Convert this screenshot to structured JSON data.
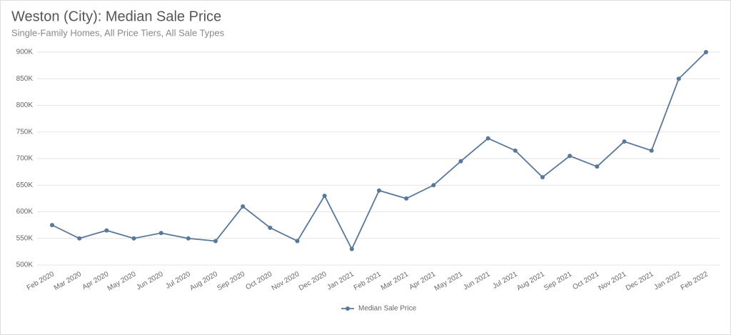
{
  "chart_data": {
    "type": "line",
    "title": "Weston (City): Median Sale Price",
    "subtitle": "Single-Family Homes, All Price Tiers, All Sale Types",
    "categories": [
      "Feb 2020",
      "Mar 2020",
      "Apr 2020",
      "May 2020",
      "Jun 2020",
      "Jul 2020",
      "Aug 2020",
      "Sep 2020",
      "Oct 2020",
      "Nov 2020",
      "Dec 2020",
      "Jan 2021",
      "Feb 2021",
      "Mar 2021",
      "Apr 2021",
      "May 2021",
      "Jun 2021",
      "Jul 2021",
      "Aug 2021",
      "Sep 2021",
      "Oct 2021",
      "Nov 2021",
      "Dec 2021",
      "Jan 2022",
      "Feb 2022"
    ],
    "series": [
      {
        "name": "Median Sale Price",
        "color": "#58789a",
        "values": [
          575000,
          550000,
          565000,
          550000,
          560000,
          550000,
          545000,
          610000,
          570000,
          545000,
          630000,
          530000,
          640000,
          625000,
          650000,
          695000,
          738000,
          715000,
          665000,
          705000,
          685000,
          732000,
          715000,
          850000,
          900000
        ]
      }
    ],
    "ylim": [
      500000,
      900000
    ],
    "yticks": [
      {
        "value": 500000,
        "label": "500K"
      },
      {
        "value": 550000,
        "label": "550K"
      },
      {
        "value": 600000,
        "label": "600K"
      },
      {
        "value": 650000,
        "label": "650K"
      },
      {
        "value": 700000,
        "label": "700K"
      },
      {
        "value": 750000,
        "label": "750K"
      },
      {
        "value": 800000,
        "label": "800K"
      },
      {
        "value": 850000,
        "label": "850K"
      },
      {
        "value": 900000,
        "label": "900K"
      }
    ],
    "grid": true
  }
}
